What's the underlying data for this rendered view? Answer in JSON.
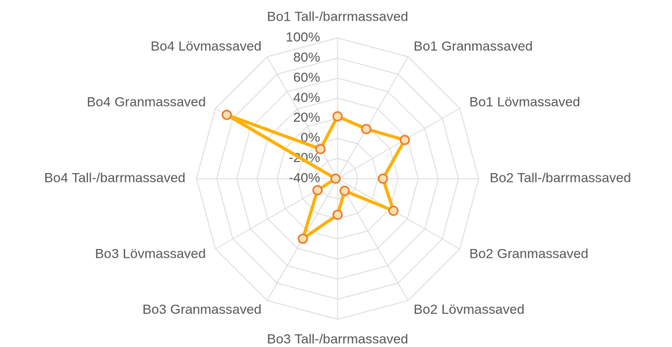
{
  "chart_data": {
    "type": "radar",
    "categories": [
      "Bo1 Tall-/barrmassaved",
      "Bo1 Granmassaved",
      "Bo1 Lövmassaved",
      "Bo2 Tall-/barrmassaved",
      "Bo2 Granmassaved",
      "Bo2 Lövmassaved",
      "Bo3 Tall-/barrmassaved",
      "Bo3 Granmassaved",
      "Bo3 Lövmassaved",
      "Bo4 Tall-/barrmassaved",
      "Bo4 Granmassaved",
      "Bo4 Lövmassaved"
    ],
    "values": [
      22,
      17,
      37,
      5,
      24,
      -26,
      -4,
      29,
      -17,
      -38,
      87,
      -6
    ],
    "color": "#ffb000",
    "marker_color": "#ed7d31",
    "ylim": [
      -40,
      100
    ],
    "yticks": [
      {
        "value": -40,
        "label": "-40%"
      },
      {
        "value": -20,
        "label": "-20%"
      },
      {
        "value": 0,
        "label": "0%"
      },
      {
        "value": 20,
        "label": "20%"
      },
      {
        "value": 40,
        "label": "40%"
      },
      {
        "value": 60,
        "label": "60%"
      },
      {
        "value": 80,
        "label": "80%"
      },
      {
        "value": 100,
        "label": "100%"
      }
    ],
    "grid": true
  }
}
